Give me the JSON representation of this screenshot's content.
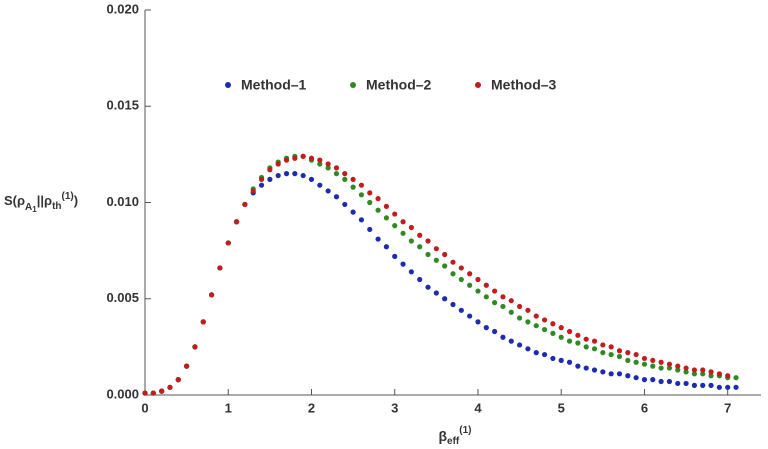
{
  "chart_data": {
    "type": "scatter",
    "xlabel": [
      "β",
      "eff",
      "(1)"
    ],
    "ylabel": [
      "S(ρ",
      "A",
      "1",
      "||ρ",
      "th",
      "(1)",
      ")"
    ],
    "x": [
      0.0,
      0.1,
      0.2,
      0.3,
      0.4,
      0.5,
      0.6,
      0.7,
      0.8,
      0.9,
      1.0,
      1.1,
      1.2,
      1.3,
      1.4,
      1.5,
      1.6,
      1.7,
      1.8,
      1.9,
      2.0,
      2.1,
      2.2,
      2.3,
      2.4,
      2.5,
      2.6,
      2.7,
      2.8,
      2.9,
      3.0,
      3.1,
      3.2,
      3.3,
      3.4,
      3.5,
      3.6,
      3.7,
      3.8,
      3.9,
      4.0,
      4.1,
      4.2,
      4.3,
      4.4,
      4.5,
      4.6,
      4.7,
      4.8,
      4.9,
      5.0,
      5.1,
      5.2,
      5.3,
      5.4,
      5.5,
      5.6,
      5.7,
      5.8,
      5.9,
      6.0,
      6.1,
      6.2,
      6.3,
      6.4,
      6.5,
      6.6,
      6.7,
      6.8,
      6.9,
      7.0,
      7.1
    ],
    "series": [
      {
        "name": "Method–1",
        "color": "#1c2bb0",
        "values": [
          0.0001,
          0.0001,
          0.0002,
          0.0004,
          0.0008,
          0.0015,
          0.0025,
          0.0038,
          0.0052,
          0.0066,
          0.0079,
          0.009,
          0.0099,
          0.0105,
          0.0109,
          0.0112,
          0.0114,
          0.0115,
          0.0115,
          0.0114,
          0.0112,
          0.0109,
          0.0106,
          0.0103,
          0.0099,
          0.0095,
          0.0091,
          0.0086,
          0.0081,
          0.0077,
          0.0072,
          0.0068,
          0.0064,
          0.006,
          0.0056,
          0.0053,
          0.005,
          0.0047,
          0.0044,
          0.0041,
          0.0038,
          0.0035,
          0.0033,
          0.003,
          0.0028,
          0.0026,
          0.0024,
          0.0022,
          0.0021,
          0.0019,
          0.0018,
          0.0017,
          0.0015,
          0.0014,
          0.0013,
          0.0012,
          0.0011,
          0.0011,
          0.001,
          0.0009,
          0.0008,
          0.0008,
          0.0007,
          0.0007,
          0.0006,
          0.0006,
          0.0005,
          0.0005,
          0.0005,
          0.0004,
          0.0004,
          0.0004
        ]
      },
      {
        "name": "Method–2",
        "color": "#2f8a22",
        "values": [
          0.0001,
          0.0001,
          0.0002,
          0.0004,
          0.0008,
          0.0015,
          0.0025,
          0.0038,
          0.0052,
          0.0066,
          0.0079,
          0.009,
          0.0099,
          0.0107,
          0.0113,
          0.0118,
          0.0121,
          0.0123,
          0.0124,
          0.0124,
          0.0122,
          0.012,
          0.0118,
          0.0115,
          0.0112,
          0.0108,
          0.0104,
          0.01,
          0.0096,
          0.0092,
          0.0088,
          0.0084,
          0.008,
          0.0077,
          0.0073,
          0.007,
          0.0067,
          0.0063,
          0.006,
          0.0057,
          0.0054,
          0.0051,
          0.0048,
          0.0046,
          0.0043,
          0.004,
          0.0038,
          0.0036,
          0.0034,
          0.0032,
          0.003,
          0.0028,
          0.0027,
          0.0025,
          0.0024,
          0.0022,
          0.0021,
          0.002,
          0.0018,
          0.0017,
          0.0016,
          0.0015,
          0.0014,
          0.0014,
          0.0013,
          0.0012,
          0.0011,
          0.0011,
          0.001,
          0.001,
          0.0009,
          0.0009
        ]
      },
      {
        "name": "Method–3",
        "color": "#c21d1d",
        "values": [
          0.0001,
          0.0001,
          0.0002,
          0.0004,
          0.0008,
          0.0015,
          0.0025,
          0.0038,
          0.0052,
          0.0066,
          0.0079,
          0.009,
          0.0099,
          0.0106,
          0.0112,
          0.0117,
          0.012,
          0.0122,
          0.0123,
          0.0124,
          0.0123,
          0.0122,
          0.012,
          0.0118,
          0.0115,
          0.0112,
          0.0109,
          0.0105,
          0.0102,
          0.0098,
          0.0094,
          0.009,
          0.0087,
          0.0083,
          0.008,
          0.0076,
          0.0073,
          0.0069,
          0.0066,
          0.0063,
          0.006,
          0.0057,
          0.0054,
          0.0051,
          0.0049,
          0.0046,
          0.0044,
          0.0041,
          0.0039,
          0.0037,
          0.0035,
          0.0033,
          0.0031,
          0.0029,
          0.0028,
          0.0026,
          0.0025,
          0.0023,
          0.0022,
          0.0021,
          0.0019,
          0.0018,
          0.0017,
          0.0016,
          0.0015,
          0.0014,
          0.0013,
          0.0013,
          0.0012,
          0.0011,
          0.001,
          null
        ]
      }
    ],
    "xlim": [
      0,
      7.4
    ],
    "ylim": [
      0,
      0.02
    ],
    "xticks": [
      0,
      1,
      2,
      3,
      4,
      5,
      6,
      7
    ],
    "yticks": [
      {
        "value": 0,
        "label": "0.000"
      },
      {
        "value": 0.005,
        "label": "0.005"
      },
      {
        "value": 0.01,
        "label": "0.010"
      },
      {
        "value": 0.015,
        "label": "0.015"
      },
      {
        "value": 0.02,
        "label": "0.020"
      }
    ]
  }
}
